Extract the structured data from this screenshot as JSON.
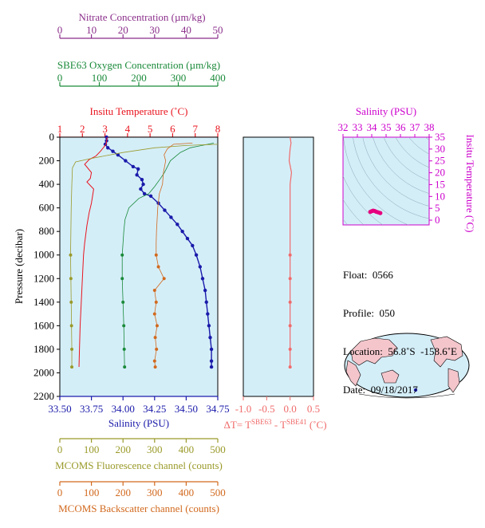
{
  "colors": {
    "nitrate": "#8b2f8b",
    "oxygen": "#1a8a3a",
    "temperature": "#e8141e",
    "salinity": "#1a1aaa",
    "fluorescence": "#9a9a2a",
    "backscatter": "#d2691e",
    "delta_t": "#f06a6a",
    "ts_axis": "#cc00cc",
    "plot_bg": "#d4eef8"
  },
  "axes": {
    "nitrate": {
      "label": "Nitrate Concentration (µm/kg)",
      "ticks": [
        "0",
        "10",
        "20",
        "30",
        "40",
        "50"
      ]
    },
    "oxygen": {
      "label": "SBE63 Oxygen Concentration (µm/kg)",
      "ticks": [
        "0",
        "100",
        "200",
        "300",
        "400"
      ]
    },
    "temperature": {
      "label": "Insitu Temperature (˚C)",
      "ticks": [
        "1",
        "2",
        "3",
        "4",
        "5",
        "6",
        "7",
        "8"
      ]
    },
    "salinity": {
      "label": "Salinity (PSU)",
      "ticks": [
        "33.50",
        "33.75",
        "34.00",
        "34.25",
        "34.50",
        "34.75"
      ]
    },
    "pressure": {
      "label": "Pressure (decibar)",
      "ticks": [
        "0",
        "200",
        "400",
        "600",
        "800",
        "1000",
        "1200",
        "1400",
        "1600",
        "1800",
        "2000",
        "2200"
      ]
    },
    "fluorescence": {
      "label": "MCOMS Fluorescence channel (counts)",
      "ticks": [
        "0",
        "100",
        "200",
        "300",
        "400",
        "500"
      ]
    },
    "backscatter": {
      "label": "MCOMS Backscatter channel (counts)",
      "ticks": [
        "0",
        "100",
        "200",
        "300",
        "400",
        "500"
      ]
    },
    "delta_t": {
      "label_main": "ΔT= T",
      "sup1": "SBE63",
      "label_mid": " - T",
      "sup2": "SBE41",
      "label_end": " (˚C)",
      "ticks": [
        "-1.0",
        "-0.5",
        "0.0",
        "0.5"
      ]
    },
    "ts_salinity": {
      "label": "Salinity (PSU)",
      "ticks": [
        "32",
        "33",
        "34",
        "35",
        "36",
        "37",
        "38"
      ]
    },
    "ts_temperature": {
      "label": "Insitu Temperature (˚C)",
      "ticks": [
        "0",
        "5",
        "10",
        "15",
        "20",
        "25",
        "30",
        "35"
      ]
    }
  },
  "info": {
    "float": "Float:  0566",
    "profile": "Profile:  050",
    "location": "Location:  56.8˚S  -158.6˚E",
    "date": "Date:  09/18/2017"
  },
  "chart_data": {
    "type": "line",
    "y_variable": "pressure (decibar)",
    "ylim": [
      2200,
      0
    ],
    "series": [
      {
        "name": "Salinity (PSU)",
        "xlim": [
          33.5,
          34.75
        ],
        "points": [
          [
            33.87,
            0
          ],
          [
            33.87,
            30
          ],
          [
            33.86,
            60
          ],
          [
            33.88,
            90
          ],
          [
            33.92,
            120
          ],
          [
            33.96,
            150
          ],
          [
            34.02,
            200
          ],
          [
            34.08,
            250
          ],
          [
            34.12,
            270
          ],
          [
            34.11,
            320
          ],
          [
            34.15,
            360
          ],
          [
            34.16,
            400
          ],
          [
            34.14,
            440
          ],
          [
            34.17,
            480
          ],
          [
            34.22,
            500
          ],
          [
            34.28,
            560
          ],
          [
            34.33,
            620
          ],
          [
            34.38,
            680
          ],
          [
            34.43,
            740
          ],
          [
            34.47,
            800
          ],
          [
            34.51,
            860
          ],
          [
            34.55,
            920
          ],
          [
            34.58,
            1000
          ],
          [
            34.61,
            1100
          ],
          [
            34.63,
            1200
          ],
          [
            34.65,
            1300
          ],
          [
            34.66,
            1400
          ],
          [
            34.67,
            1500
          ],
          [
            34.68,
            1600
          ],
          [
            34.69,
            1700
          ],
          [
            34.7,
            1800
          ],
          [
            34.7,
            1900
          ],
          [
            34.7,
            1950
          ]
        ]
      },
      {
        "name": "Insitu Temperature (˚C)",
        "xlim": [
          1,
          8
        ],
        "points": [
          [
            3.1,
            0
          ],
          [
            3.05,
            60
          ],
          [
            2.8,
            120
          ],
          [
            2.6,
            160
          ],
          [
            2.3,
            190
          ],
          [
            2.1,
            230
          ],
          [
            2.4,
            300
          ],
          [
            2.35,
            350
          ],
          [
            2.2,
            380
          ],
          [
            2.5,
            440
          ],
          [
            2.45,
            500
          ],
          [
            2.4,
            560
          ],
          [
            2.3,
            640
          ],
          [
            2.2,
            750
          ],
          [
            2.1,
            900
          ],
          [
            2.05,
            1000
          ],
          [
            2.0,
            1200
          ],
          [
            1.95,
            1400
          ],
          [
            1.9,
            1600
          ],
          [
            1.87,
            1800
          ],
          [
            1.85,
            1950
          ]
        ]
      },
      {
        "name": "SBE63 Oxygen Concentration (µm/kg)",
        "xlim": [
          0,
          400
        ],
        "points": [
          [
            390,
            50
          ],
          [
            330,
            90
          ],
          [
            305,
            130
          ],
          [
            280,
            200
          ],
          [
            265,
            300
          ],
          [
            255,
            350
          ],
          [
            240,
            420
          ],
          [
            225,
            480
          ],
          [
            200,
            520
          ],
          [
            175,
            600
          ],
          [
            165,
            700
          ],
          [
            162,
            800
          ],
          [
            160,
            900
          ],
          [
            158,
            1000
          ],
          [
            158,
            1200
          ],
          [
            160,
            1400
          ],
          [
            162,
            1600
          ],
          [
            163,
            1800
          ],
          [
            164,
            1950
          ]
        ]
      },
      {
        "name": "Nitrate Concentration (µm/kg)",
        "xlim": [
          0,
          50
        ],
        "points": []
      },
      {
        "name": "MCOMS Fluorescence channel (counts)",
        "xlim": [
          0,
          500
        ],
        "points": [
          [
            500,
            60
          ],
          [
            400,
            70
          ],
          [
            300,
            90
          ],
          [
            200,
            130
          ],
          [
            100,
            180
          ],
          [
            50,
            210
          ],
          [
            40,
            260
          ],
          [
            38,
            400
          ],
          [
            36,
            600
          ],
          [
            35,
            800
          ],
          [
            34,
            1000
          ],
          [
            35,
            1200
          ],
          [
            36,
            1400
          ],
          [
            37,
            1600
          ],
          [
            38,
            1800
          ],
          [
            38,
            1950
          ]
        ]
      },
      {
        "name": "MCOMS Backscatter channel (counts)",
        "xlim": [
          0,
          500
        ],
        "points": [
          [
            420,
            50
          ],
          [
            360,
            60
          ],
          [
            340,
            100
          ],
          [
            330,
            150
          ],
          [
            335,
            200
          ],
          [
            328,
            300
          ],
          [
            325,
            400
          ],
          [
            315,
            480
          ],
          [
            312,
            550
          ],
          [
            310,
            600
          ],
          [
            308,
            700
          ],
          [
            306,
            800
          ],
          [
            305,
            900
          ],
          [
            305,
            1000
          ],
          [
            312,
            1100
          ],
          [
            330,
            1200
          ],
          [
            300,
            1300
          ],
          [
            305,
            1400
          ],
          [
            300,
            1500
          ],
          [
            308,
            1600
          ],
          [
            302,
            1700
          ],
          [
            306,
            1800
          ],
          [
            300,
            1900
          ],
          [
            302,
            1950
          ]
        ]
      },
      {
        "name": "ΔT (˚C)",
        "xlim": [
          -1,
          0.5
        ],
        "points": [
          [
            0.0,
            0
          ],
          [
            0.02,
            50
          ],
          [
            0.0,
            100
          ],
          [
            -0.02,
            200
          ],
          [
            0.03,
            300
          ],
          [
            0.0,
            400
          ],
          [
            0.0,
            600
          ],
          [
            0.0,
            800
          ],
          [
            0.0,
            1000
          ],
          [
            0.0,
            1200
          ],
          [
            0.0,
            1400
          ],
          [
            0.0,
            1600
          ],
          [
            0.0,
            1800
          ],
          [
            0.0,
            1950
          ]
        ]
      }
    ],
    "ts_diagram": {
      "xlim": [
        32,
        38
      ],
      "ylim": [
        -2,
        35
      ],
      "points": [
        [
          33.9,
          3.5
        ],
        [
          34.0,
          3.8
        ],
        [
          34.1,
          4.0
        ],
        [
          34.2,
          3.9
        ],
        [
          34.3,
          3.6
        ],
        [
          34.4,
          3.4
        ],
        [
          34.5,
          3.2
        ],
        [
          34.6,
          3.0
        ]
      ]
    }
  }
}
